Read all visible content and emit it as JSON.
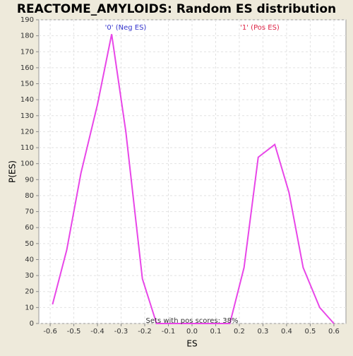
{
  "chart_data": {
    "type": "line",
    "title": "REACTOME_AMYLOIDS: Random ES distribution",
    "x_label": "ES",
    "y_label": "P(ES)",
    "x": [
      -0.59,
      -0.53,
      -0.47,
      -0.4,
      -0.34,
      -0.28,
      -0.21,
      -0.15,
      -0.09,
      -0.03,
      0.03,
      0.09,
      0.16,
      0.22,
      0.28,
      0.35,
      0.41,
      0.47,
      0.54,
      0.6
    ],
    "series": [
      {
        "name": "P(ES)",
        "color": "#e846e8",
        "values": [
          12,
          46,
          94,
          137,
          181,
          120,
          28,
          0,
          0,
          0,
          0,
          0,
          0,
          35,
          104,
          112,
          82,
          35,
          10,
          0
        ]
      }
    ],
    "xlim": [
      -0.648,
      0.651
    ],
    "ylim": [
      0,
      190
    ],
    "xticks": [
      -0.6,
      -0.5,
      -0.4,
      -0.3,
      -0.2,
      -0.1,
      {
        "value": 0,
        "label": "0.0"
      },
      0.1,
      0.2,
      0.3,
      0.4,
      0.5,
      0.6
    ],
    "yticks": [
      0,
      10,
      20,
      30,
      40,
      50,
      60,
      70,
      80,
      90,
      100,
      110,
      120,
      130,
      140,
      150,
      160,
      170,
      180,
      190
    ],
    "grid": true,
    "annotations": [
      {
        "text": "'0' (Neg ES)",
        "color": "#3333cc"
      },
      {
        "text": "'1' (Pos ES)",
        "color": "#dd2244"
      },
      {
        "text": "Sets with pos scores: 38%",
        "color": "#333333"
      }
    ]
  }
}
